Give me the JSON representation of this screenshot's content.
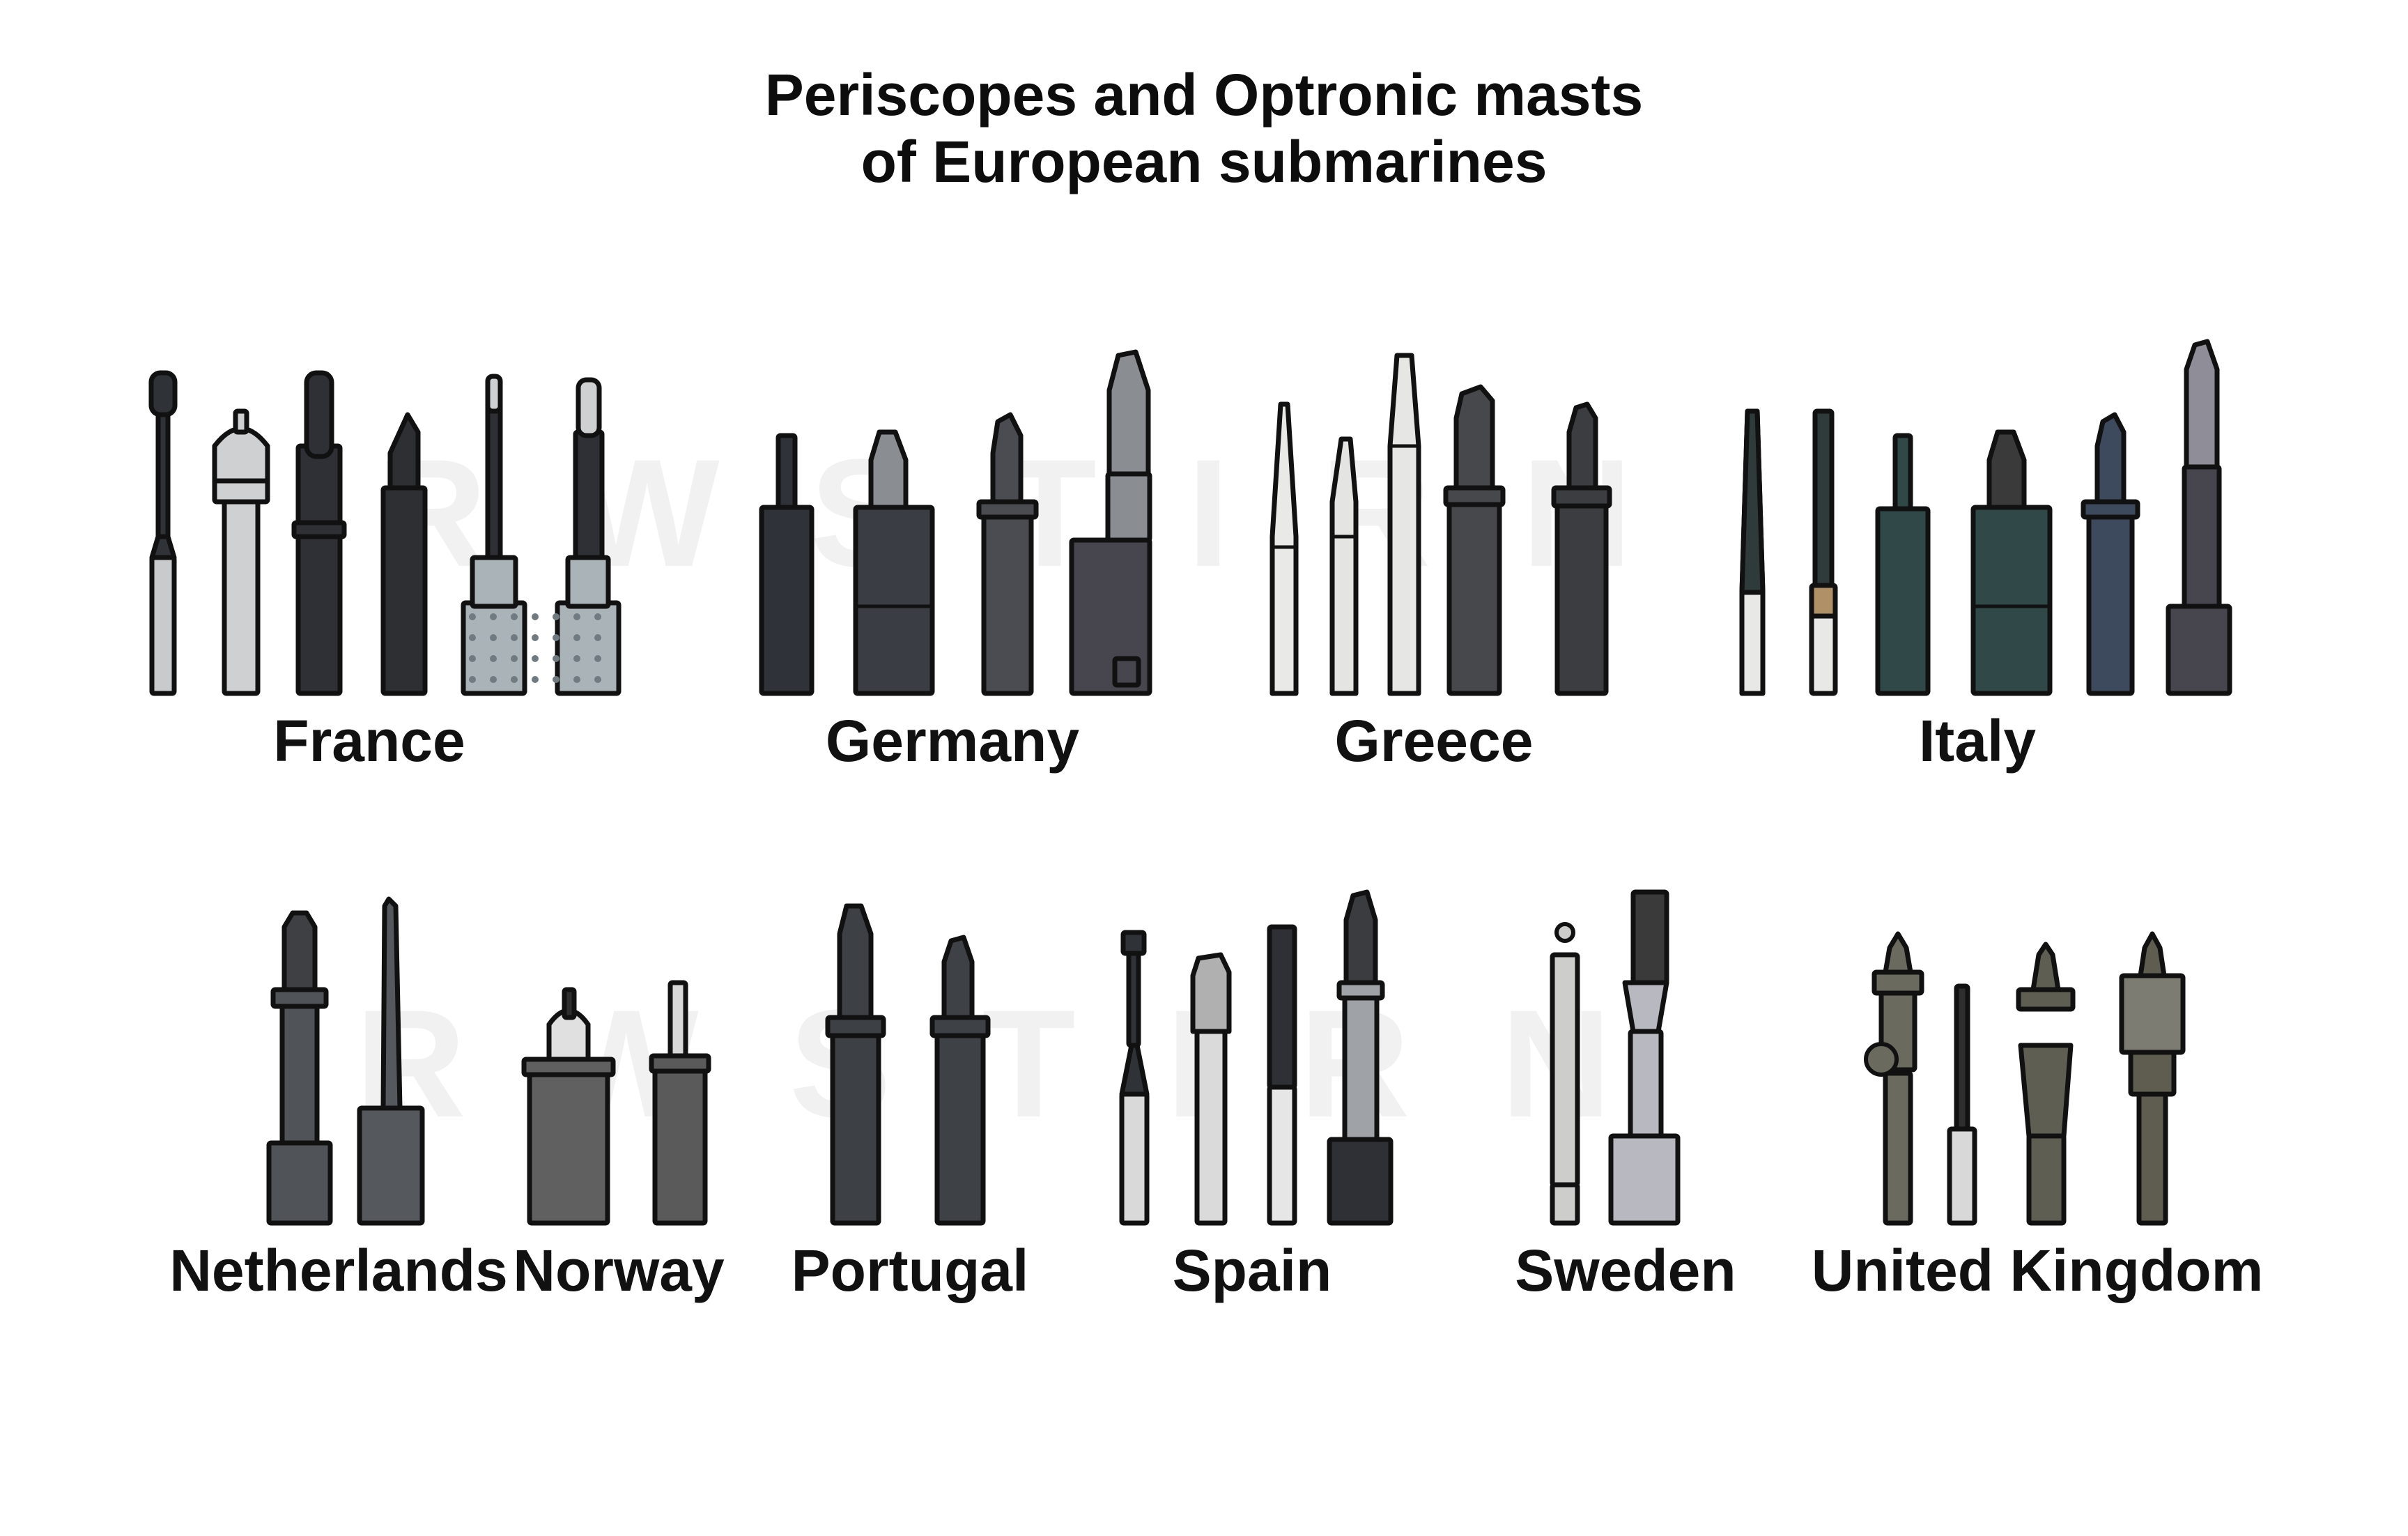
{
  "title_line1": "Periscopes and Optronic masts",
  "title_line2": "of European submarines",
  "watermark": "RWSTIRN",
  "colors": {
    "outline": "#111111",
    "france": [
      "#c9cacb",
      "#cfd0d1",
      "#2e3035",
      "#2d2f33",
      "#aab3b7",
      "#aab3b7"
    ],
    "germany": [
      "#2f3238",
      "#3a3d43",
      "#4a4c51",
      "#47464e"
    ],
    "greece": [
      "#e9e9e7",
      "#e4e4e2",
      "#e6e6e4",
      "#46484c",
      "#3c3d40"
    ],
    "italy": [
      "#e8e8e6",
      "#e8e8e6",
      "#314848",
      "#314848",
      "#3d4a5e",
      "#47464f"
    ],
    "netherlands": [
      "#505357",
      "#55585c"
    ],
    "norway": [
      "#606060",
      "#5a5a5a"
    ],
    "portugal": [
      "#3d4044",
      "#3e4146"
    ],
    "spain": [
      "#d9d9d9",
      "#dadada",
      "#e6e6e6",
      "#9fa2a6"
    ],
    "sweden": [
      "#cdcdcb",
      "#b8b8c0"
    ],
    "united_kingdom": [
      "#6b6a5e",
      "#d8d8d8",
      "#5e5f52",
      "#5e5d50"
    ]
  },
  "countries": [
    {
      "id": "france",
      "label": "France"
    },
    {
      "id": "germany",
      "label": "Germany"
    },
    {
      "id": "greece",
      "label": "Greece"
    },
    {
      "id": "italy",
      "label": "Italy"
    },
    {
      "id": "netherlands",
      "label": "Netherlands"
    },
    {
      "id": "norway",
      "label": "Norway"
    },
    {
      "id": "portugal",
      "label": "Portugal"
    },
    {
      "id": "spain",
      "label": "Spain"
    },
    {
      "id": "sweden",
      "label": "Sweden"
    },
    {
      "id": "united_kingdom",
      "label": "United Kingdom"
    }
  ]
}
